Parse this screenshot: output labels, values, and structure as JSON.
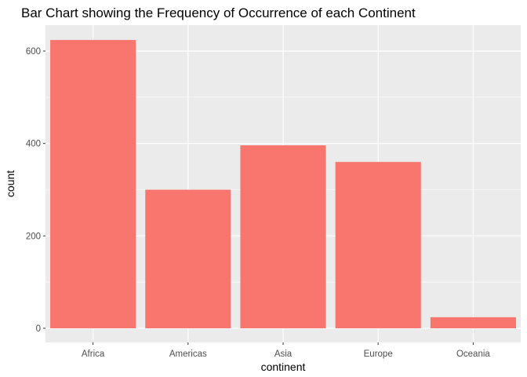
{
  "chart_data": {
    "type": "bar",
    "title": "Bar Chart showing the Frequency of Occurrence of each Continent",
    "xlabel": "continent",
    "ylabel": "count",
    "categories": [
      "Africa",
      "Americas",
      "Asia",
      "Europe",
      "Oceania"
    ],
    "values": [
      624,
      300,
      396,
      360,
      24
    ],
    "ylim": [
      0,
      650
    ],
    "yticks": [
      0,
      200,
      400,
      600
    ],
    "bar_color": "#F8766D",
    "panel_background": "#EBEBEB",
    "gridline_color": "#FFFFFF",
    "grid": true,
    "legend": "none"
  }
}
